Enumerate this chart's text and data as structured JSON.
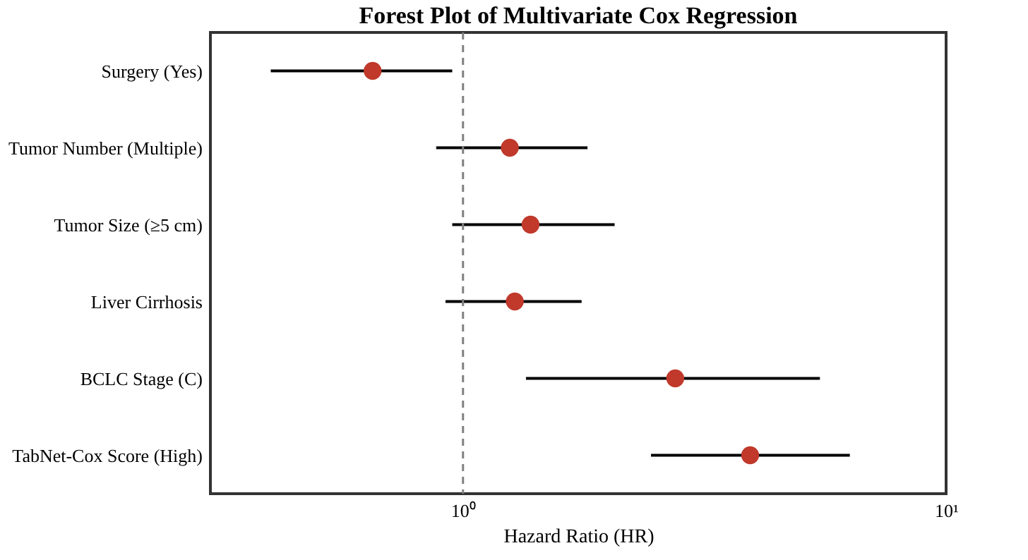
{
  "chart_data": {
    "type": "scatter",
    "orientation": "horizontal",
    "title": "Forest Plot of Multivariate Cox Regression",
    "xlabel": "Hazard Ratio (HR)",
    "categories": [
      "Surgery (Yes)",
      "Tumor Number (Multiple)",
      "Tumor Size (≥5 cm)",
      "Liver Cirrhosis",
      "BCLC Stage (C)",
      "TabNet-Cox Score (High)"
    ],
    "series": [
      {
        "color": "#c0392b",
        "values": [
          0.65,
          1.25,
          1.38,
          1.28,
          2.75,
          3.93
        ],
        "errors": [
          [
            0.4,
            0.95
          ],
          [
            0.88,
            1.81
          ],
          [
            0.95,
            2.06
          ],
          [
            0.92,
            1.76
          ],
          [
            1.35,
            5.48
          ],
          [
            2.45,
            6.32
          ]
        ]
      }
    ],
    "xlim": [
      0.3,
      10
    ],
    "xticks": [
      {
        "value": 1,
        "label": "10⁰"
      },
      {
        "value": 10,
        "label": "10¹"
      }
    ],
    "log": "x",
    "ref_lines": [
      {
        "axis": "x",
        "value": 1,
        "color": "#808080",
        "line_style": "dashed"
      }
    ],
    "marker": "circle",
    "grid": false,
    "legend": false
  }
}
